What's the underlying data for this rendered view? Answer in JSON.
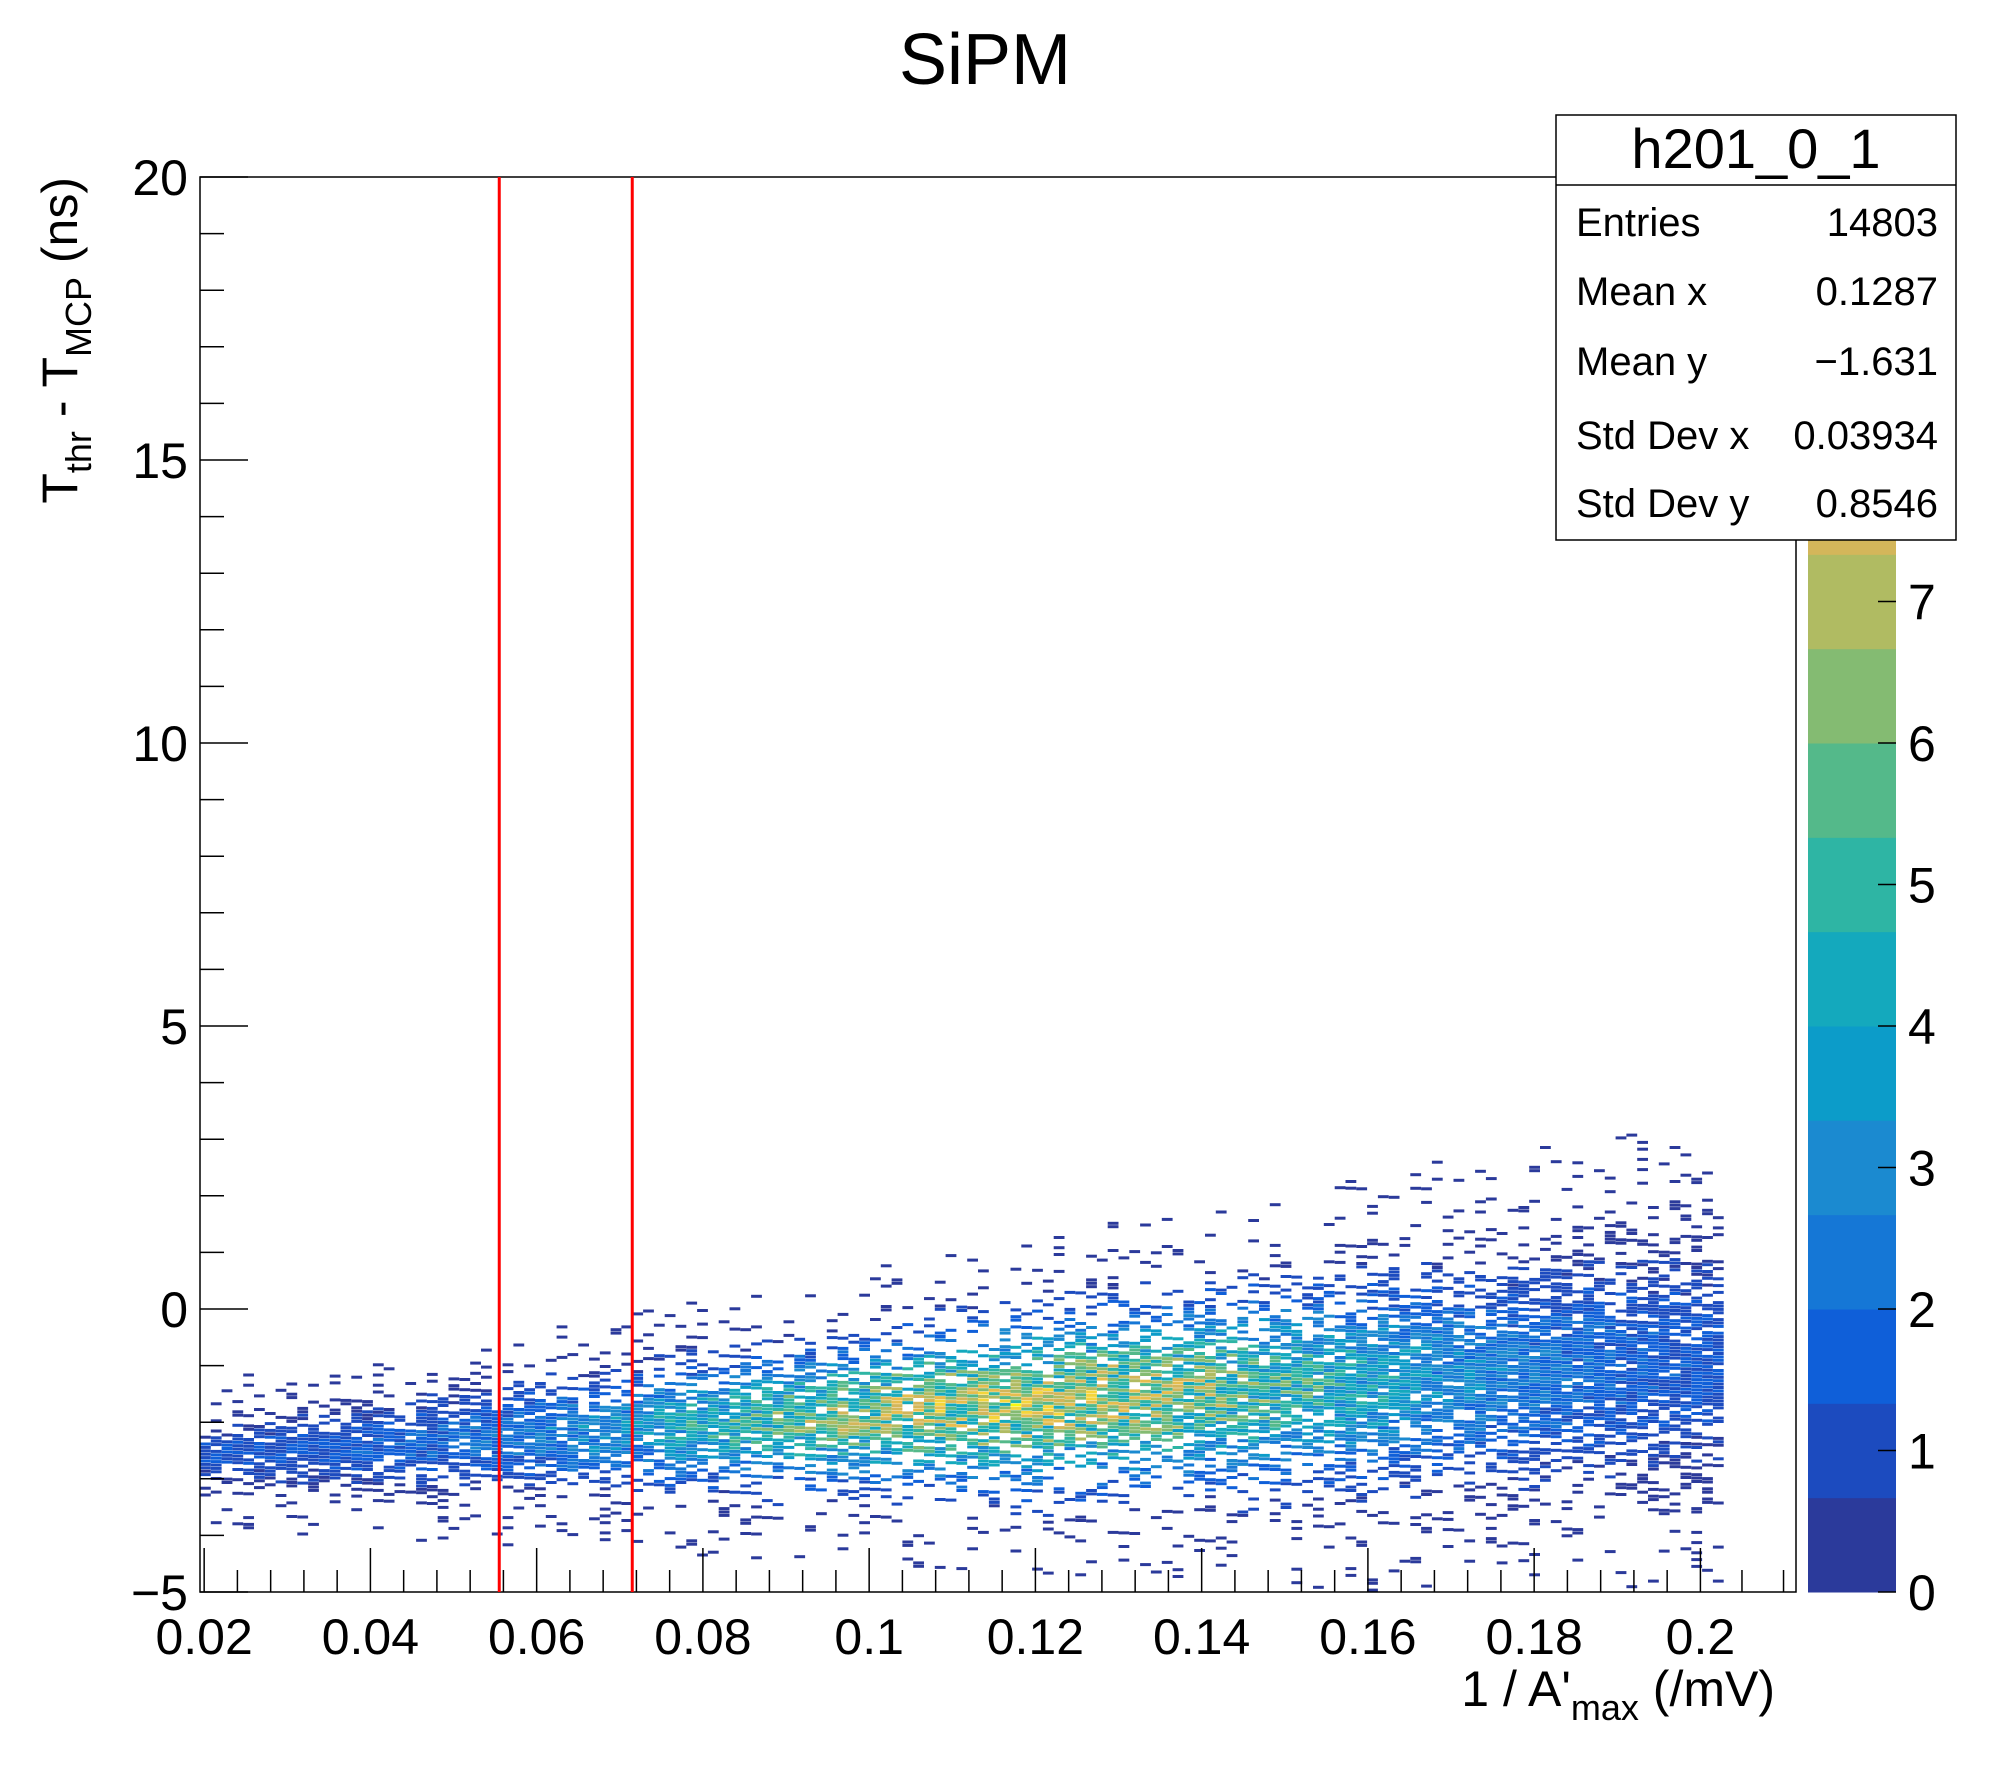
{
  "chart_data": {
    "type": "heatmap",
    "title": "SiPM",
    "xlabel": {
      "main": "1 / A'",
      "sub": "max",
      "unit": " (/mV)"
    },
    "ylabel": {
      "t1": "T",
      "sub1": "thr",
      "mid": " - T",
      "sub2": "MCP",
      "unit": " (ns)"
    },
    "xlim": [
      0.0195,
      0.2115
    ],
    "ylim": [
      -5,
      20
    ],
    "x_ticks": [
      {
        "v": 0.02,
        "label": "0.02"
      },
      {
        "v": 0.04,
        "label": "0.04"
      },
      {
        "v": 0.06,
        "label": "0.06"
      },
      {
        "v": 0.08,
        "label": "0.08"
      },
      {
        "v": 0.1,
        "label": "0.1"
      },
      {
        "v": 0.12,
        "label": "0.12"
      },
      {
        "v": 0.14,
        "label": "0.14"
      },
      {
        "v": 0.16,
        "label": "0.16"
      },
      {
        "v": 0.18,
        "label": "0.18"
      },
      {
        "v": 0.2,
        "label": "0.2"
      }
    ],
    "y_ticks": [
      {
        "v": -5,
        "label": "−5"
      },
      {
        "v": 0,
        "label": "0"
      },
      {
        "v": 5,
        "label": "5"
      },
      {
        "v": 10,
        "label": "10"
      },
      {
        "v": 15,
        "label": "15"
      },
      {
        "v": 20,
        "label": "20"
      }
    ],
    "cut_lines_x": [
      0.0555,
      0.0715
    ],
    "cut_line_color": "#ff0000",
    "band": {
      "x_range": [
        0.0195,
        0.2015
      ],
      "y_center_at_x0": -2.62,
      "y_slope": 9.3,
      "y_spread_at_x0": 0.38,
      "y_spread_slope": 5.0,
      "peak_x": 0.118,
      "peak_count": 7.5
    },
    "color_scale": {
      "zlim": [
        0,
        10
      ],
      "ticks": [
        "0",
        "1",
        "2",
        "3",
        "4",
        "5",
        "6",
        "7"
      ],
      "colors": [
        "#2b3a9b",
        "#1c4bbf",
        "#0f5fd9",
        "#1577d6",
        "#1b8ad0",
        "#0c9cc9",
        "#14a9bd",
        "#2eb5a4",
        "#54b98a",
        "#84bb72",
        "#b0bb62",
        "#d4b65a",
        "#e6bd4e",
        "#f5d53b",
        "#f9f70f"
      ]
    },
    "stats_box": {
      "title": "h201_0_1",
      "rows": [
        {
          "label": "Entries",
          "value": "14803"
        },
        {
          "label": "Mean x",
          "value": "0.1287"
        },
        {
          "label": "Mean y",
          "value": "−1.631"
        },
        {
          "label": "Std Dev x",
          "value": "0.03934"
        },
        {
          "label": "Std Dev y",
          "value": "0.8546"
        }
      ]
    }
  }
}
